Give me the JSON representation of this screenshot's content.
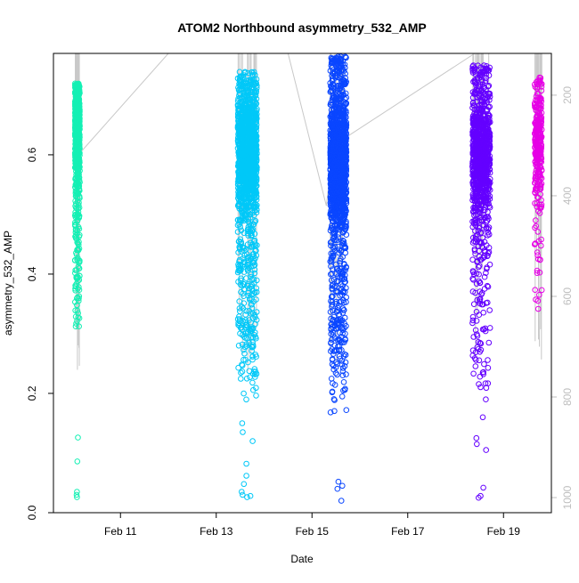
{
  "chart_data": {
    "type": "scatter",
    "title": "ATOM2 Northbound asymmetry_532_AMP",
    "xlabel": "Date",
    "ylabel": "asymmetry_532_AMP",
    "x_ticks": [
      "Feb 11",
      "Feb 13",
      "Feb 15",
      "Feb 17",
      "Feb 19"
    ],
    "x_tick_days": [
      11,
      13,
      15,
      17,
      19
    ],
    "xlim_days": [
      9.6,
      20.0
    ],
    "ylim": [
      0.0,
      0.77
    ],
    "y_ticks": [
      0.0,
      0.2,
      0.4,
      0.6
    ],
    "secondary_axis": {
      "label": "",
      "ticks": [
        200,
        400,
        600,
        800,
        1000
      ],
      "range": [
        117,
        1030
      ],
      "reversed": true,
      "color": "#bebebe"
    },
    "marker": "open circle",
    "grid": false,
    "clusters": [
      {
        "x_range": [
          10.05,
          10.15
        ],
        "color": "#14f0b4",
        "dense_y": [
          0.28,
          0.72
        ],
        "mode_y": 0.66,
        "outliers_y": [
          0.126,
          0.086,
          0.035,
          0.03,
          0.026
        ],
        "n": 650
      },
      {
        "x_range": [
          13.45,
          13.85
        ],
        "color": "#00c8f8",
        "dense_y": [
          0.18,
          0.74
        ],
        "mode_y": 0.6,
        "outliers_y": [
          0.15,
          0.135,
          0.12,
          0.082,
          0.062,
          0.048,
          0.035,
          0.03,
          0.028,
          0.026
        ],
        "n": 1400
      },
      {
        "x_range": [
          15.38,
          15.72
        ],
        "color": "#0a46ff",
        "dense_y": [
          0.16,
          0.765
        ],
        "mode_y": 0.58,
        "outliers_y": [
          0.052,
          0.045,
          0.04,
          0.02
        ],
        "n": 1600
      },
      {
        "x_range": [
          18.35,
          18.72
        ],
        "color": "#6400ff",
        "dense_y": [
          0.2,
          0.75
        ],
        "mode_y": 0.6,
        "outliers_y": [
          0.235,
          0.19,
          0.16,
          0.125,
          0.115,
          0.105,
          0.042,
          0.028,
          0.025
        ],
        "n": 1000
      },
      {
        "x_range": [
          19.65,
          19.8
        ],
        "color": "#e600e6",
        "dense_y": [
          0.34,
          0.73
        ],
        "mode_y": 0.62,
        "outliers_y": [
          0.355
        ],
        "n": 320
      }
    ],
    "altitude_trace": {
      "color": "#c8c8c8",
      "points": [
        [
          10.1,
          250
        ],
        [
          10.2,
          310
        ],
        [
          12.0,
          117
        ],
        [
          14.5,
          117
        ],
        [
          15.3,
          420
        ],
        [
          15.45,
          300
        ],
        [
          18.4,
          117
        ],
        [
          19.7,
          117
        ],
        [
          19.75,
          700
        ]
      ]
    }
  }
}
